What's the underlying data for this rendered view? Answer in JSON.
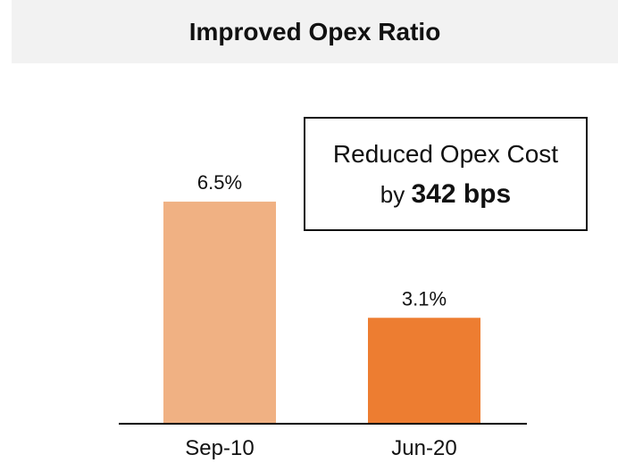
{
  "title": "Improved Opex Ratio",
  "callout": {
    "line1": "Reduced Opex Cost",
    "prefix": "by ",
    "highlight": "342 bps"
  },
  "colors": {
    "title_band": "#f2f2f2",
    "bar_sep10": "#f0b183",
    "bar_jun20": "#ed7d31",
    "axis": "#000000",
    "text": "#111111"
  },
  "chart_data": {
    "type": "bar",
    "categories": [
      "Sep-10",
      "Jun-20"
    ],
    "values": [
      6.5,
      3.1
    ],
    "unit": "%",
    "data_labels": [
      "6.5%",
      "3.1%"
    ],
    "title": "Improved Opex Ratio",
    "xlabel": "",
    "ylabel": "",
    "ylim": [
      0,
      10
    ],
    "grid": false,
    "legend": "none"
  }
}
